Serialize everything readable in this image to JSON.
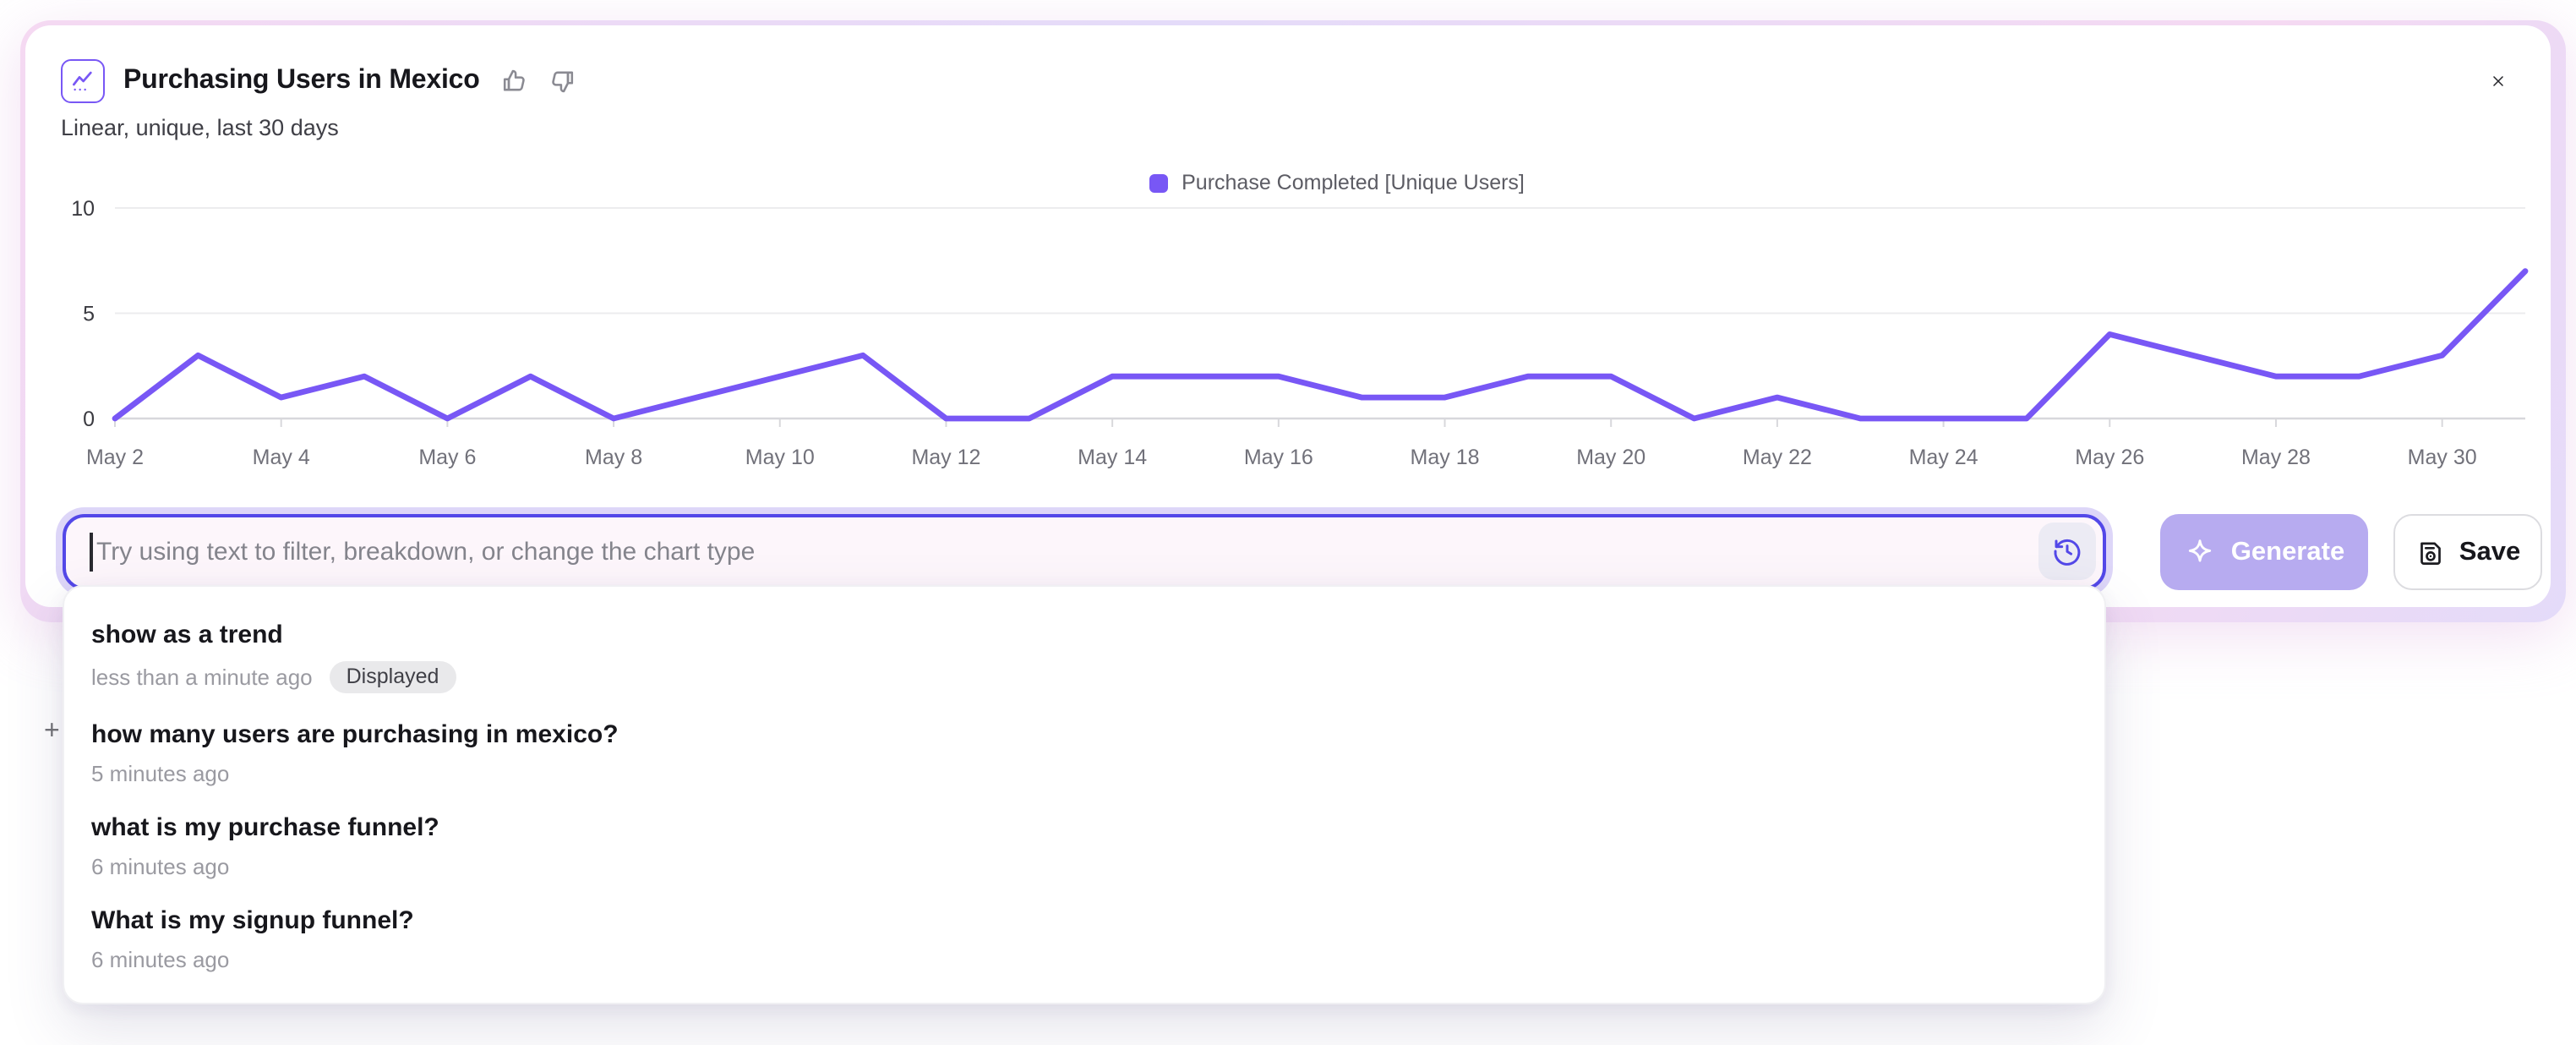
{
  "card": {
    "title": "Purchasing Users in Mexico",
    "subtitle": "Linear, unique, last 30 days"
  },
  "icons": {
    "chart_badge": "line-chart-icon",
    "thumbs_up": "thumbs-up-icon",
    "thumbs_down": "thumbs-down-icon",
    "close": "close-icon",
    "history": "history-clock-icon",
    "sparkle": "sparkle-icon",
    "save": "save-disk-icon"
  },
  "chart_data": {
    "type": "line",
    "title": "Purchasing Users in Mexico",
    "x": [
      "May 2",
      "May 3",
      "May 4",
      "May 5",
      "May 6",
      "May 7",
      "May 8",
      "May 9",
      "May 10",
      "May 11",
      "May 12",
      "May 13",
      "May 14",
      "May 15",
      "May 16",
      "May 17",
      "May 18",
      "May 19",
      "May 20",
      "May 21",
      "May 22",
      "May 23",
      "May 24",
      "May 25",
      "May 26",
      "May 27",
      "May 28",
      "May 29",
      "May 30",
      "May 31"
    ],
    "x_tick_every": 2,
    "series": [
      {
        "name": "Purchase Completed [Unique Users]",
        "color": "#7857F5",
        "values": [
          0,
          3,
          1,
          2,
          0,
          2,
          0,
          1,
          2,
          3,
          0,
          0,
          2,
          2,
          2,
          1,
          1,
          2,
          2,
          0,
          1,
          0,
          0,
          0,
          4,
          3,
          2,
          2,
          3,
          7
        ]
      }
    ],
    "ylim": [
      0,
      10
    ],
    "yticks": [
      0,
      5,
      10
    ],
    "grid": "horizontal",
    "legend_position": "top-center"
  },
  "prompt_bar": {
    "value": "",
    "placeholder": "Try using text to filter, breakdown, or change the chart type",
    "generate_label": "Generate",
    "generate_state": "disabled",
    "save_label": "Save"
  },
  "history_dropdown": {
    "items": [
      {
        "query": "show as a trend",
        "time": "less than a minute ago",
        "badge": "Displayed"
      },
      {
        "query": "how many users are purchasing in mexico?",
        "time": "5 minutes ago",
        "badge": ""
      },
      {
        "query": "what is my purchase funnel?",
        "time": "6 minutes ago",
        "badge": ""
      },
      {
        "query": "What is my signup funnel?",
        "time": "6 minutes ago",
        "badge": ""
      }
    ]
  },
  "cursor_marker": "+",
  "colors": {
    "accent": "#7857F5",
    "input_border": "#5348E8",
    "input_bg": "#FDF6FB",
    "input_glow": "#DDD6F8",
    "generate_bg": "#B7ABF0",
    "badge_bg": "#E9E9EB",
    "grid": "#ECECEE",
    "axis": "#D8D8DC",
    "glow_pink": "#F5D9F2",
    "glow_lavender": "#E4DBF9"
  }
}
